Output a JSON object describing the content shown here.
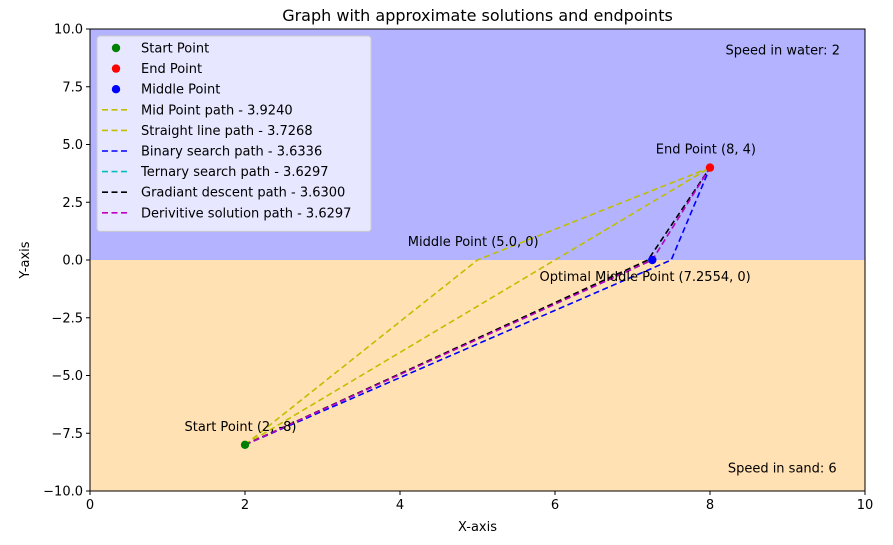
{
  "chart_data": {
    "type": "line",
    "title": "Graph with approximate solutions and endpoints",
    "xlabel": "X-axis",
    "ylabel": "Y-axis",
    "xlim": [
      0,
      10
    ],
    "ylim": [
      -10,
      10
    ],
    "xticks": [
      0,
      2,
      4,
      6,
      8,
      10
    ],
    "yticks": [
      -10.0,
      -7.5,
      -5.0,
      -2.5,
      0.0,
      2.5,
      5.0,
      7.5,
      10.0
    ],
    "xtick_labels": [
      "0",
      "2",
      "4",
      "6",
      "8",
      "10"
    ],
    "ytick_labels": [
      "−10.0",
      "−7.5",
      "−5.0",
      "−2.5",
      "0.0",
      "2.5",
      "5.0",
      "7.5",
      "10.0"
    ],
    "grid": false,
    "legend_position": "top-left",
    "regions": [
      {
        "name": "water",
        "y_range": [
          0,
          10
        ],
        "color": "#b3b3ff"
      },
      {
        "name": "sand",
        "y_range": [
          -10,
          0
        ],
        "color": "#ffe1b3"
      }
    ],
    "points": [
      {
        "name": "Start Point",
        "x": 2,
        "y": -8,
        "color": "#008000"
      },
      {
        "name": "End Point",
        "x": 8,
        "y": 4,
        "color": "#ff0000"
      },
      {
        "name": "Middle Point",
        "x": 7.2554,
        "y": 0,
        "color": "#0000ff"
      }
    ],
    "series": [
      {
        "name": "Mid Point path - 3.9240",
        "color": "#bfbf00",
        "x": [
          2,
          5.0,
          8
        ],
        "y": [
          -8,
          0,
          4
        ]
      },
      {
        "name": "Straight line path - 3.7268",
        "color": "#bfbf00",
        "x": [
          2,
          8
        ],
        "y": [
          -8,
          4
        ]
      },
      {
        "name": "Binary search path - 3.6336",
        "color": "#0000ff",
        "x": [
          2,
          7.5,
          8
        ],
        "y": [
          -8,
          0,
          4
        ]
      },
      {
        "name": "Ternary search path - 3.6297",
        "color": "#00bfbf",
        "x": [
          2,
          7.2554,
          8
        ],
        "y": [
          -8,
          0,
          4
        ]
      },
      {
        "name": "Gradiant descent path - 3.6300",
        "color": "#000000",
        "x": [
          2,
          7.2,
          8
        ],
        "y": [
          -8,
          0,
          4
        ]
      },
      {
        "name": "Derivitive solution path - 3.6297",
        "color": "#bf00bf",
        "x": [
          2,
          7.2554,
          8
        ],
        "y": [
          -8,
          0,
          4
        ]
      }
    ],
    "annotations": [
      {
        "text": "Speed in water: 2",
        "x": 8.2,
        "y": 8.9
      },
      {
        "text": "Speed in sand: 6",
        "x": 8.23,
        "y": -9.2
      },
      {
        "text": "End Point (8, 4)",
        "x": 7.3,
        "y": 4.6
      },
      {
        "text": "Middle Point (5.0, 0)",
        "x": 4.1,
        "y": 0.6
      },
      {
        "text": "Optimal Middle Point (7.2554, 0)",
        "x": 5.8,
        "y": -0.9
      },
      {
        "text": "Start Point (2, -8)",
        "x": 1.22,
        "y": -7.4
      }
    ]
  }
}
